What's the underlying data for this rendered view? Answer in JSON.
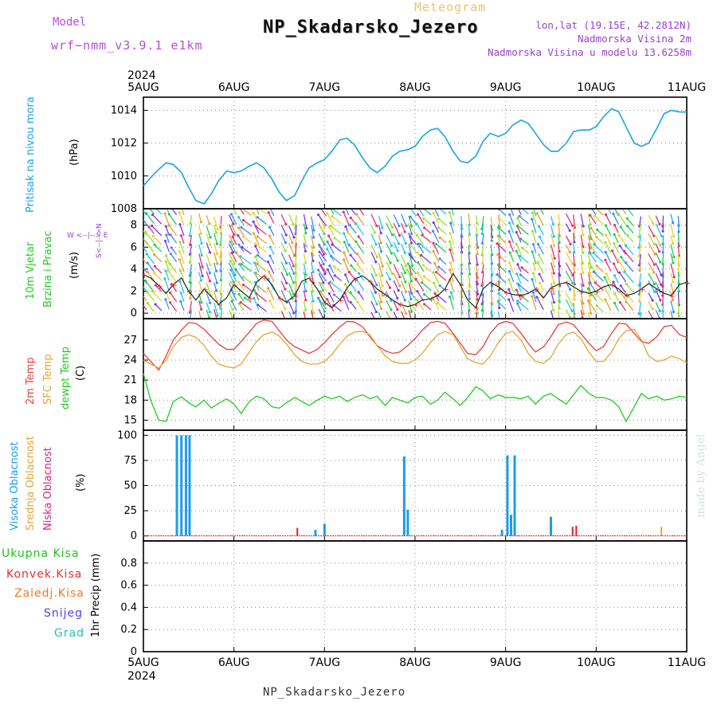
{
  "header": {
    "model_label": "Model",
    "model_value": "wrf−nmm_v3.9.1  e1km",
    "subtitle": "Meteogram",
    "title": "NP_Skadarsko_Jezero",
    "coords": "lon,lat (19.15E, 42.2812N)",
    "elevation": "Nadmorska Visina 2m",
    "model_elevation": "Nadmorska Visina u modelu 13.6258m"
  },
  "footer": {
    "station": "NP_Skadarsko_Jezero",
    "credit": "made by Angel"
  },
  "time_axis": {
    "year": "2024",
    "ticks": [
      "5AUG",
      "6AUG",
      "7AUG",
      "8AUG",
      "9AUG",
      "10AUG",
      "11AUG"
    ]
  },
  "colors": {
    "pressure": "#1aa3e6",
    "temp2m": "#e84040",
    "sfc_temp": "#e0a830",
    "dewpoint": "#22cc22",
    "high_cloud": "#1e9be8",
    "mid_cloud": "#e0a830",
    "low_cloud": "#e02020",
    "precip_total": "#22c022",
    "precip_conv": "#e83030",
    "precip_frozen": "#f07820",
    "snow": "#5a3cf0",
    "hail": "#20c0b0"
  },
  "panels": {
    "pressure": {
      "labels": [
        "Pritisak na nivou mora",
        "(hPa)"
      ]
    },
    "wind": {
      "labels": [
        "10m Vjetar",
        "Brzina i Pravac",
        "(m/s)"
      ],
      "compass": "W <--|--> E",
      "compass2": "S<--|-->N"
    },
    "temperature": {
      "labels": [
        "2m Temp",
        "SFC Temp",
        "dewpt Temp",
        "(C)"
      ]
    },
    "cloud": {
      "labels": [
        "Visoka Oblacnost",
        "Srednja Oblacnost",
        "Niska Oblacnost",
        "(%)"
      ]
    },
    "precip": {
      "labels": [
        "Ukupna Kisa",
        "Konvek.Kisa",
        "Zaledj.Kisa",
        "Snijeg",
        "Grad",
        "1hr Precip (mm)"
      ]
    }
  },
  "chart_data": [
    {
      "type": "line",
      "ylabel": "(hPa)",
      "ylim": [
        1008,
        1014.8
      ],
      "yticks": [
        1008,
        1010,
        1012,
        1014
      ],
      "grid": true,
      "x": [
        0,
        0.08,
        0.17,
        0.25,
        0.33,
        0.42,
        0.5,
        0.58,
        0.67,
        0.75,
        0.83,
        0.92,
        1.0,
        1.08,
        1.17,
        1.25,
        1.33,
        1.42,
        1.5,
        1.58,
        1.67,
        1.75,
        1.83,
        1.92,
        2.0,
        2.08,
        2.17,
        2.25,
        2.33,
        2.42,
        2.5,
        2.58,
        2.67,
        2.75,
        2.83,
        2.92,
        3.0,
        3.08,
        3.17,
        3.25,
        3.33,
        3.42,
        3.5,
        3.58,
        3.67,
        3.75,
        3.83,
        3.92,
        4.0,
        4.08,
        4.17,
        4.25,
        4.33,
        4.42,
        4.5,
        4.58,
        4.67,
        4.75,
        4.83,
        4.92,
        5.0,
        5.08,
        5.17,
        5.25,
        5.33,
        5.42,
        5.5,
        5.58,
        5.67,
        5.75,
        5.83,
        5.92,
        6.0
      ],
      "series": [
        {
          "values": [
            1009.4,
            1009.9,
            1010.4,
            1010.8,
            1010.7,
            1010.2,
            1009.3,
            1008.5,
            1008.3,
            1008.9,
            1009.7,
            1010.3,
            1010.2,
            1010.3,
            1010.6,
            1010.8,
            1010.5,
            1009.8,
            1009.0,
            1008.5,
            1008.8,
            1009.7,
            1010.5,
            1010.8,
            1011.0,
            1011.5,
            1012.2,
            1012.3,
            1011.9,
            1011.1,
            1010.5,
            1010.2,
            1010.6,
            1011.2,
            1011.5,
            1011.6,
            1011.8,
            1012.4,
            1012.8,
            1012.9,
            1012.4,
            1011.5,
            1010.9,
            1010.8,
            1011.2,
            1012.1,
            1012.6,
            1012.4,
            1012.6,
            1013.1,
            1013.4,
            1013.2,
            1012.6,
            1011.9,
            1011.5,
            1011.5,
            1012.0,
            1012.7,
            1012.8,
            1012.8,
            1013.0,
            1013.6,
            1014.1,
            1013.9,
            1013.0,
            1012.0,
            1011.8,
            1012.0,
            1012.9,
            1013.8,
            1014.0,
            1013.9,
            1013.9
          ]
        }
      ]
    },
    {
      "type": "scatter",
      "ylabel": "(m/s)",
      "ylim": [
        -0.5,
        9.5
      ],
      "yticks": [
        0,
        2,
        4,
        6,
        8
      ],
      "grid": true,
      "x": [
        0,
        0.08,
        0.17,
        0.25,
        0.33,
        0.42,
        0.5,
        0.58,
        0.67,
        0.75,
        0.83,
        0.92,
        1.0,
        1.08,
        1.17,
        1.25,
        1.33,
        1.42,
        1.5,
        1.58,
        1.67,
        1.75,
        1.83,
        1.92,
        2.0,
        2.08,
        2.17,
        2.25,
        2.33,
        2.42,
        2.5,
        2.58,
        2.67,
        2.75,
        2.83,
        2.92,
        3.0,
        3.08,
        3.17,
        3.25,
        3.33,
        3.42,
        3.5,
        3.58,
        3.67,
        3.75,
        3.83,
        3.92,
        4.0,
        4.08,
        4.17,
        4.25,
        4.33,
        4.42,
        4.5,
        4.58,
        4.67,
        4.75,
        4.83,
        4.92,
        5.0,
        5.08,
        5.17,
        5.25,
        5.33,
        5.42,
        5.5,
        5.58,
        5.67,
        5.75,
        5.83,
        5.92,
        6.0
      ],
      "series": [
        {
          "values": [
            3.5,
            3.2,
            2.5,
            1.8,
            2.6,
            3.2,
            2.0,
            1.2,
            2.2,
            1.5,
            0.8,
            1.4,
            2.6,
            2.0,
            1.4,
            2.8,
            3.4,
            2.6,
            1.4,
            1.0,
            1.6,
            2.9,
            3.2,
            2.2,
            1.0,
            0.5,
            1.2,
            2.3,
            3.1,
            3.4,
            2.9,
            2.2,
            1.7,
            1.2,
            0.8,
            0.6,
            0.8,
            1.2,
            1.3,
            1.6,
            2.2,
            3.6,
            2.6,
            1.2,
            0.5,
            2.2,
            2.8,
            2.4,
            1.9,
            1.7,
            1.6,
            1.8,
            2.2,
            1.4,
            2.3,
            2.6,
            2.8,
            2.4,
            2.0,
            1.8,
            2.0,
            2.4,
            2.6,
            2.2,
            1.6,
            1.8,
            2.2,
            2.7,
            2.2,
            1.8,
            1.6,
            2.6,
            2.8
          ]
        }
      ]
    },
    {
      "type": "line",
      "ylabel": "(C)",
      "ylim": [
        13.5,
        30.2
      ],
      "yticks": [
        15,
        18,
        21,
        24,
        27
      ],
      "grid": true,
      "x": [
        0,
        0.08,
        0.17,
        0.25,
        0.33,
        0.42,
        0.5,
        0.58,
        0.67,
        0.75,
        0.83,
        0.92,
        1.0,
        1.08,
        1.17,
        1.25,
        1.33,
        1.42,
        1.5,
        1.58,
        1.67,
        1.75,
        1.83,
        1.92,
        2.0,
        2.08,
        2.17,
        2.25,
        2.33,
        2.42,
        2.5,
        2.58,
        2.67,
        2.75,
        2.83,
        2.92,
        3.0,
        3.08,
        3.17,
        3.25,
        3.33,
        3.42,
        3.5,
        3.58,
        3.67,
        3.75,
        3.83,
        3.92,
        4.0,
        4.08,
        4.17,
        4.25,
        4.33,
        4.42,
        4.5,
        4.58,
        4.67,
        4.75,
        4.83,
        4.92,
        5.0,
        5.08,
        5.17,
        5.25,
        5.33,
        5.42,
        5.5,
        5.58,
        5.67,
        5.75,
        5.83,
        5.92,
        6.0
      ],
      "series": [
        {
          "name": "2m Temp",
          "values": [
            25.0,
            23.8,
            22.5,
            24.6,
            27.0,
            28.5,
            29.6,
            29.5,
            28.6,
            27.5,
            26.4,
            25.6,
            25.6,
            26.8,
            28.2,
            29.5,
            30.0,
            29.8,
            28.4,
            27.0,
            26.0,
            25.5,
            25.0,
            25.6,
            26.6,
            27.8,
            29.0,
            29.8,
            29.7,
            29.0,
            27.5,
            26.2,
            25.4,
            25.0,
            25.2,
            26.2,
            27.2,
            28.5,
            29.6,
            29.8,
            29.5,
            28.0,
            26.5,
            25.0,
            24.8,
            26.0,
            28.0,
            29.4,
            29.8,
            29.5,
            28.0,
            26.5,
            25.2,
            26.0,
            27.5,
            29.3,
            29.7,
            29.3,
            28.0,
            26.5,
            25.4,
            26.0,
            28.0,
            29.5,
            29.4,
            28.0,
            26.8,
            26.5,
            27.5,
            29.0,
            29.2,
            27.8,
            27.4
          ]
        },
        {
          "name": "SFC Temp",
          "values": [
            24.0,
            23.4,
            22.8,
            24.0,
            26.0,
            27.4,
            27.8,
            27.4,
            26.2,
            24.6,
            23.4,
            23.0,
            22.8,
            23.4,
            25.2,
            26.8,
            27.8,
            28.2,
            27.6,
            26.4,
            24.8,
            23.8,
            23.4,
            23.4,
            23.8,
            24.8,
            26.4,
            27.6,
            28.2,
            28.3,
            27.8,
            26.2,
            24.6,
            23.8,
            23.5,
            23.5,
            24.0,
            25.0,
            26.6,
            27.8,
            28.3,
            27.8,
            26.0,
            24.2,
            23.6,
            23.4,
            24.6,
            26.6,
            28.0,
            28.3,
            27.0,
            25.0,
            23.8,
            23.5,
            24.4,
            26.4,
            27.8,
            28.2,
            27.2,
            25.2,
            23.8,
            23.8,
            25.2,
            27.2,
            28.4,
            28.6,
            27.0,
            24.6,
            23.8,
            24.0,
            24.6,
            24.2,
            23.6
          ]
        },
        {
          "name": "dewpt Temp",
          "values": [
            22.0,
            18.0,
            15.0,
            14.8,
            17.8,
            18.5,
            17.6,
            17.0,
            18.0,
            16.8,
            17.5,
            18.2,
            17.4,
            16.0,
            17.8,
            18.6,
            18.2,
            17.0,
            16.8,
            17.6,
            18.4,
            17.8,
            17.2,
            18.0,
            18.6,
            18.2,
            18.6,
            17.8,
            18.4,
            18.8,
            18.2,
            18.6,
            17.2,
            18.4,
            18.0,
            17.6,
            18.4,
            18.6,
            17.4,
            18.0,
            19.2,
            18.2,
            17.2,
            18.4,
            20.0,
            19.4,
            18.2,
            18.8,
            18.4,
            18.4,
            18.2,
            18.6,
            17.4,
            18.6,
            19.0,
            18.2,
            17.4,
            18.8,
            20.2,
            19.0,
            18.4,
            18.4,
            18.0,
            17.0,
            14.8,
            17.0,
            19.0,
            18.2,
            18.6,
            18.0,
            18.2,
            18.6,
            18.4
          ]
        }
      ]
    },
    {
      "type": "bar",
      "ylabel": "(%)",
      "ylim": [
        -5,
        105
      ],
      "yticks": [
        0,
        25,
        50,
        75,
        100
      ],
      "grid": true,
      "series": [
        {
          "name": "Visoka Oblacnost",
          "x": [
            0.37,
            0.42,
            0.47,
            0.51,
            1.9,
            2.0,
            2.88,
            2.92,
            3.96,
            4.02,
            4.06,
            4.1,
            4.5
          ],
          "values": [
            100,
            100,
            100,
            100,
            6,
            12,
            79,
            26,
            6,
            80,
            21,
            80,
            19
          ]
        },
        {
          "name": "Srednja Oblacnost",
          "x": [
            5.72
          ],
          "values": [
            9
          ]
        },
        {
          "name": "Niska Oblacnost",
          "x": [
            1.7,
            4.74,
            4.78
          ],
          "values": [
            8,
            9,
            10
          ]
        }
      ]
    },
    {
      "type": "bar",
      "ylabel": "1hr Precip (mm)",
      "ylim": [
        0,
        1.0
      ],
      "yticks": [
        0,
        0.2,
        0.4,
        0.6,
        0.8
      ],
      "grid": true,
      "series": [
        {
          "name": "Ukupna Kisa",
          "values": []
        }
      ]
    }
  ]
}
